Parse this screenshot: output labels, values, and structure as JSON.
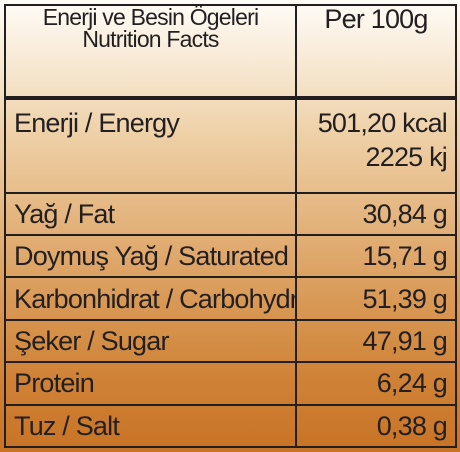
{
  "header": {
    "label_line1": "Enerji ve Besin Ögeleri",
    "label_line2": "Nutrition Facts",
    "per": "Per 100g"
  },
  "energy": {
    "label": "Enerji / Energy",
    "kcal": "501,20 kcal",
    "kj": "2225 kj"
  },
  "rows": [
    {
      "label": "Yağ / Fat",
      "value": "30,84 g"
    },
    {
      "label": "Doymuş Yağ / Saturated Fat",
      "value": "15,71 g"
    },
    {
      "label": "Karbonhidrat / Carbohydrate",
      "value": "51,39 g"
    },
    {
      "label": "Şeker / Sugar",
      "value": "47,91 g"
    },
    {
      "label": "Protein",
      "value": "6,24 g"
    },
    {
      "label": "Tuz / Salt",
      "value": "0,38 g"
    }
  ]
}
